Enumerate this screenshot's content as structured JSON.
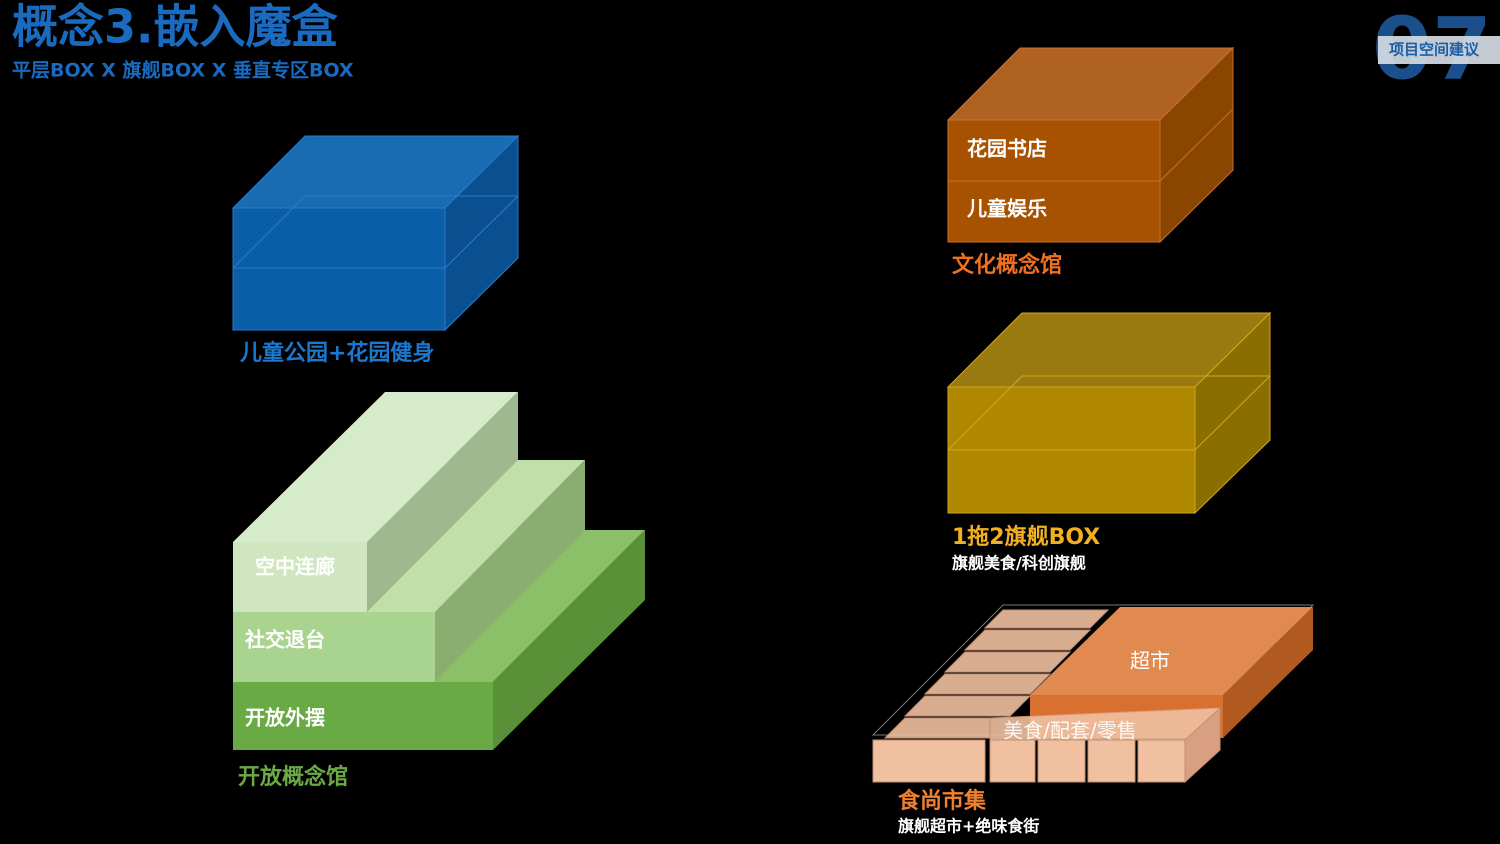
{
  "header": {
    "title": "概念3.嵌入魔盒",
    "subtitle": "平层BOX X 旗舰BOX X 垂直专区BOX",
    "page_number": "07",
    "section_tag": "项目空间建议"
  },
  "boxes": [
    {
      "label": "儿童公园+花园健身"
    },
    {
      "label": "开放概念馆",
      "layers": [
        "空中连廊",
        "社交退台",
        "开放外摆"
      ]
    },
    {
      "label": "文化概念馆",
      "layers": [
        "花园书店",
        "儿童娱乐"
      ]
    },
    {
      "label": "1拖2旗舰BOX",
      "sublabel": "旗舰美食/科创旗舰"
    },
    {
      "label": "食尚市集",
      "sublabel": "旗舰超市+绝味食街",
      "layers": [
        "超市",
        "美食/配套/零售"
      ]
    }
  ]
}
